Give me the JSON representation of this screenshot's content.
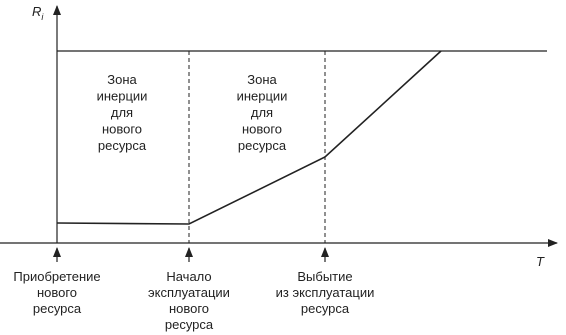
{
  "axes": {
    "y_label": "R",
    "y_label_sub": "i",
    "x_label": "T"
  },
  "zones": [
    {
      "lines": [
        "Зона",
        "инерции",
        "для",
        "нового",
        "ресурса"
      ]
    },
    {
      "lines": [
        "Зона",
        "инерции",
        "для",
        "нового",
        "ресурса"
      ]
    }
  ],
  "events": [
    {
      "lines": [
        "Приобретение",
        "нового",
        "ресурса"
      ]
    },
    {
      "lines": [
        "Начало",
        "эксплуатации",
        "нового",
        "ресурса"
      ]
    },
    {
      "lines": [
        "Выбытие",
        "из эксплуатации",
        "ресурса"
      ]
    }
  ]
}
